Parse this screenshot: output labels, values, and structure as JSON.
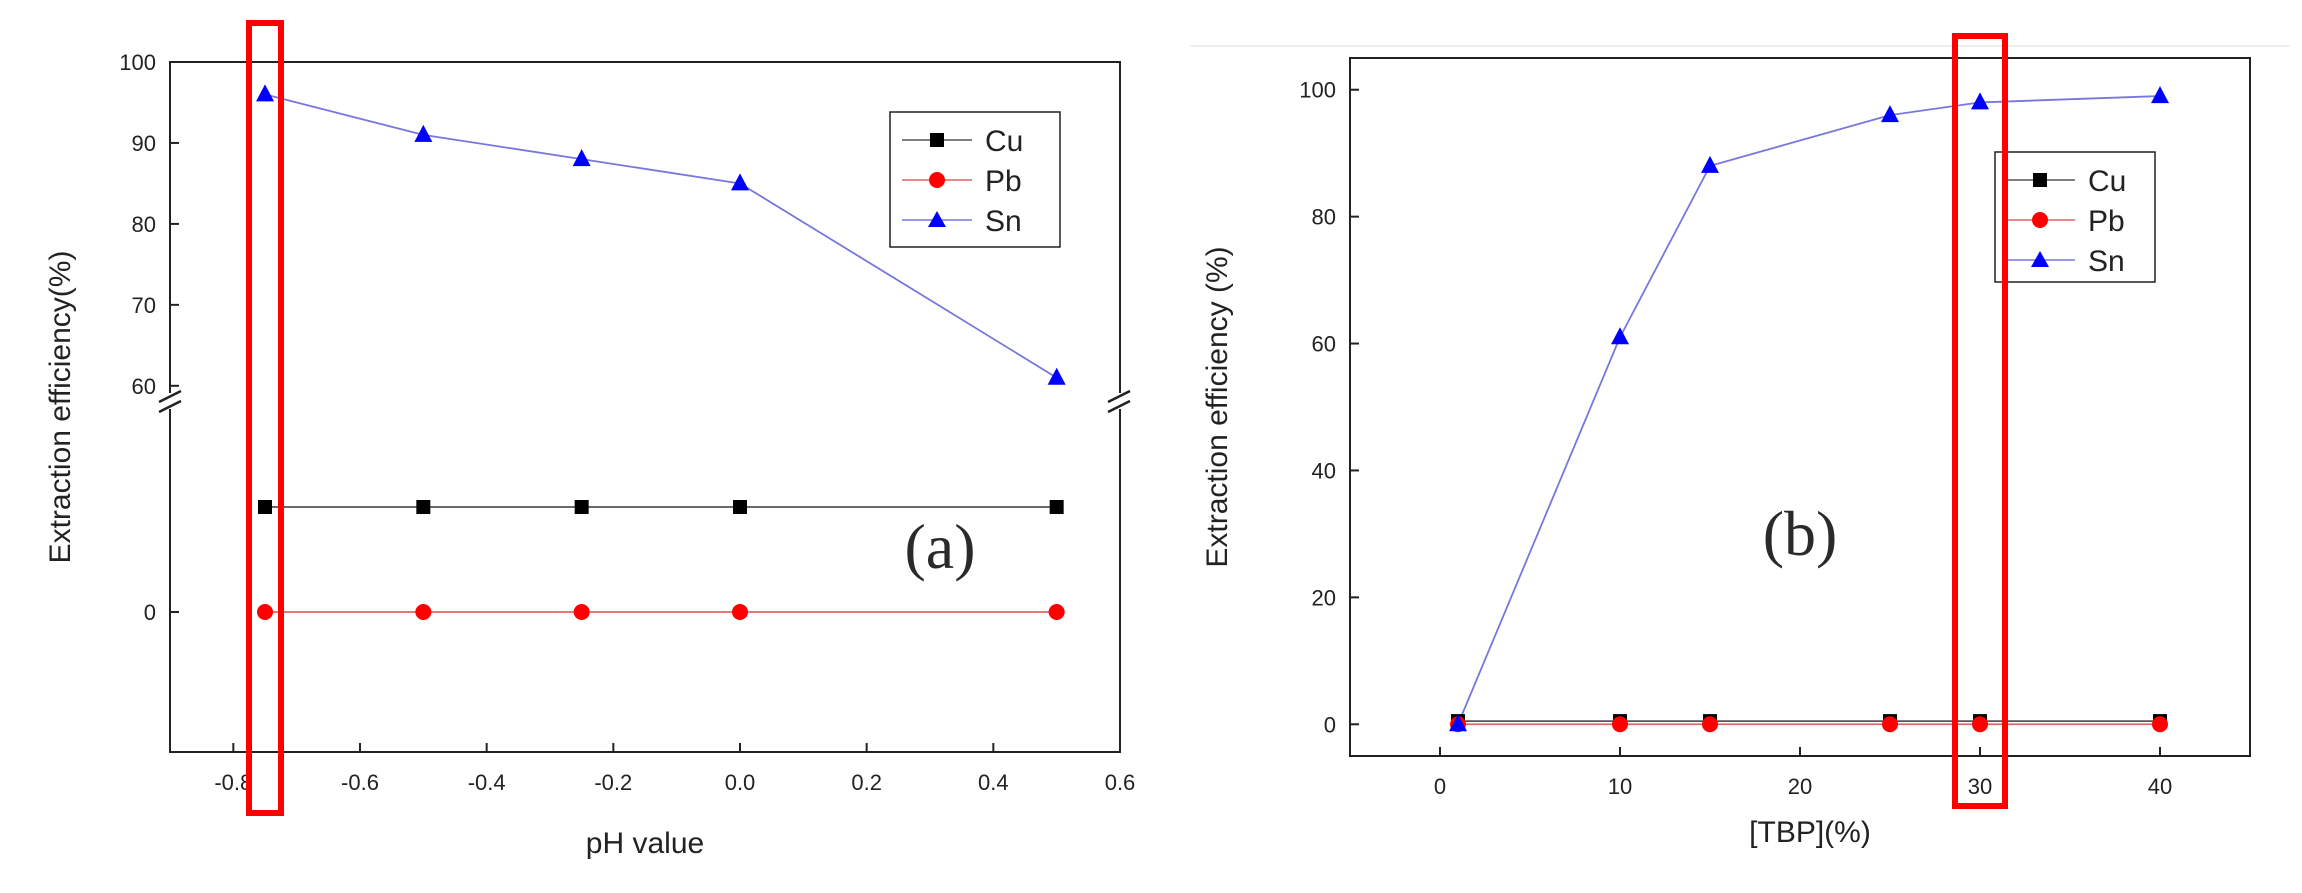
{
  "chart_data": [
    {
      "panel": "a",
      "type": "line",
      "panel_label": "(a)",
      "xlabel": "pH value",
      "ylabel": "Extraction efficiency(%)",
      "xlim": [
        -0.9,
        0.6
      ],
      "x_ticks": [
        "-0.8",
        "-0.6",
        "-0.4",
        "-0.2",
        "0.0",
        "0.2",
        "0.4",
        "0.6"
      ],
      "x_tick_values": [
        -0.8,
        -0.6,
        -0.4,
        -0.2,
        0.0,
        0.2,
        0.4,
        0.6
      ],
      "y_axis": {
        "broken": true,
        "lower_segment": {
          "range": [
            -2,
            3
          ],
          "ticks": [
            "0"
          ],
          "tick_values": [
            0
          ]
        },
        "upper_segment": {
          "range": [
            58,
            100
          ],
          "ticks": [
            "60",
            "70",
            "80",
            "90",
            "100"
          ],
          "tick_values": [
            60,
            70,
            80,
            90,
            100
          ]
        }
      },
      "x": [
        -0.75,
        -0.5,
        -0.25,
        0.0,
        0.5
      ],
      "series": [
        {
          "name": "Cu",
          "marker": "square",
          "color": "#000000",
          "values": [
            1.5,
            1.5,
            1.5,
            1.5,
            1.5
          ]
        },
        {
          "name": "Pb",
          "marker": "circle",
          "color": "#ff0000",
          "values": [
            0,
            0,
            0,
            0,
            0
          ]
        },
        {
          "name": "Sn",
          "marker": "triangle",
          "color": "#0000ff",
          "values": [
            96,
            91,
            88,
            85,
            61
          ]
        }
      ],
      "legend_position": "top-right",
      "highlight": {
        "x": -0.75,
        "color": "#ff0000"
      }
    },
    {
      "panel": "b",
      "type": "line",
      "panel_label": "(b)",
      "xlabel": "[TBP](%)",
      "ylabel": "Extraction efficiency (%)",
      "xlim": [
        -5,
        45
      ],
      "ylim": [
        -5,
        105
      ],
      "x_ticks": [
        "0",
        "10",
        "20",
        "30",
        "40"
      ],
      "x_tick_values": [
        0,
        10,
        20,
        30,
        40
      ],
      "y_ticks": [
        "0",
        "20",
        "40",
        "60",
        "80",
        "100"
      ],
      "y_tick_values": [
        0,
        20,
        40,
        60,
        80,
        100
      ],
      "x": [
        1,
        10,
        15,
        25,
        30,
        40
      ],
      "series": [
        {
          "name": "Cu",
          "marker": "square",
          "color": "#000000",
          "values": [
            0.5,
            0.5,
            0.5,
            0.5,
            0.5,
            0.5
          ]
        },
        {
          "name": "Pb",
          "marker": "circle",
          "color": "#ff0000",
          "values": [
            0,
            0,
            0,
            0,
            0,
            0
          ]
        },
        {
          "name": "Sn",
          "marker": "triangle",
          "color": "#0000ff",
          "values": [
            0,
            61,
            88,
            96,
            98,
            99
          ]
        }
      ],
      "legend_position": "right-center",
      "highlight": {
        "x": 30,
        "color": "#ff0000"
      }
    }
  ],
  "colors": {
    "axis": "#222222",
    "sn_line": "#7777dd",
    "pb_line": "#dd6666",
    "cu_line": "#555555",
    "highlight": "#ff0000"
  }
}
